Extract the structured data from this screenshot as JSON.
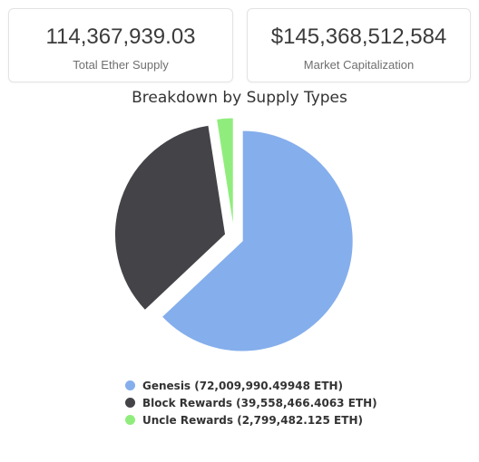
{
  "stats": {
    "supply": {
      "value": "114,367,939.03",
      "label": "Total Ether Supply"
    },
    "market_cap": {
      "value": "$145,368,512,584",
      "label": "Market Capitalization"
    }
  },
  "chart_data": {
    "type": "pie",
    "title": "Breakdown by Supply Types",
    "categories": [
      "Genesis",
      "Block Rewards",
      "Uncle Rewards"
    ],
    "values": [
      72009990.49948,
      39558466.4063,
      2799482.125
    ],
    "colors": [
      "#85aeec",
      "#434348",
      "#90ed7d"
    ],
    "legend_labels": [
      "Genesis (72,009,990.49948 ETH)",
      "Block Rewards (39,558,466.4063 ETH)",
      "Uncle Rewards (2,799,482.125 ETH)"
    ],
    "legend_position": "bottom"
  }
}
